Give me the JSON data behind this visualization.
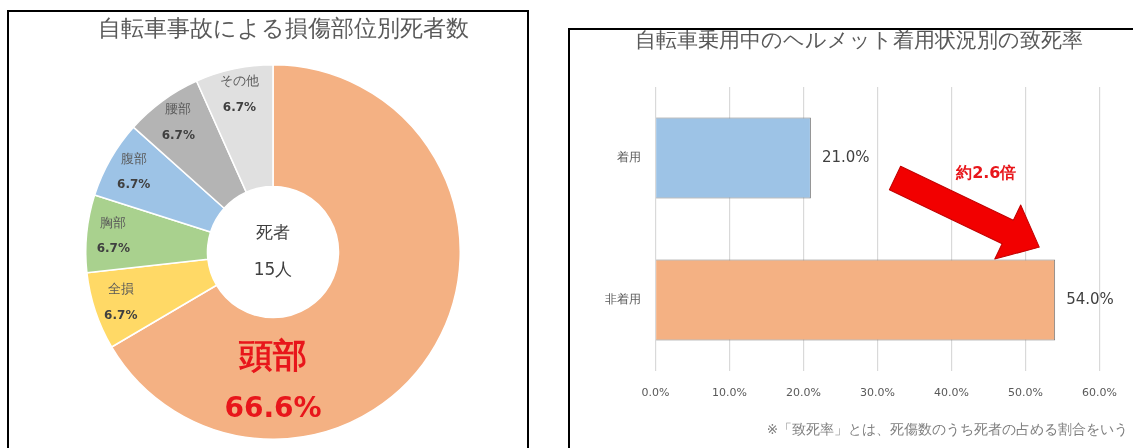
{
  "chart_data": [
    {
      "type": "donut",
      "title": "自転車事故による損傷部位別死者数",
      "categories": [
        "頭部",
        "全損",
        "胸部",
        "腹部",
        "腰部",
        "その他"
      ],
      "values": [
        66.6,
        6.7,
        6.7,
        6.7,
        6.7,
        6.7
      ],
      "colors": [
        "#f4b183",
        "#ffd966",
        "#a9d18e",
        "#9dc3e6",
        "#b4b4b4",
        "#e0e0e0"
      ],
      "value_labels": [
        "66.6%",
        "6.7%",
        "6.7%",
        "6.7%",
        "6.7%",
        "6.7%"
      ],
      "annotations": [
        "死者",
        "15人"
      ],
      "legend": false
    },
    {
      "type": "bar",
      "orientation": "horizontal",
      "title": "自転車乗用中のヘルメット着用状況別の致死率",
      "categories": [
        "着用",
        "非着用"
      ],
      "values": [
        21.0,
        54.0
      ],
      "colors": [
        "#9dc3e6",
        "#f4b183"
      ],
      "value_labels": [
        "21.0%",
        "54.0%"
      ],
      "xlim": [
        0,
        60
      ],
      "xticks": [
        {
          "value": 0,
          "label": "0.0%"
        },
        {
          "value": 10,
          "label": "10.0%"
        },
        {
          "value": 20,
          "label": "20.0%"
        },
        {
          "value": 30,
          "label": "30.0%"
        },
        {
          "value": 40,
          "label": "40.0%"
        },
        {
          "value": 50,
          "label": "50.0%"
        },
        {
          "value": 60,
          "label": "60.0%"
        }
      ],
      "grid": "x",
      "legend": false,
      "annotations": [
        "約2.6倍",
        "※「致死率」とは、死傷数のうち死者の占める割合をいう"
      ]
    }
  ]
}
